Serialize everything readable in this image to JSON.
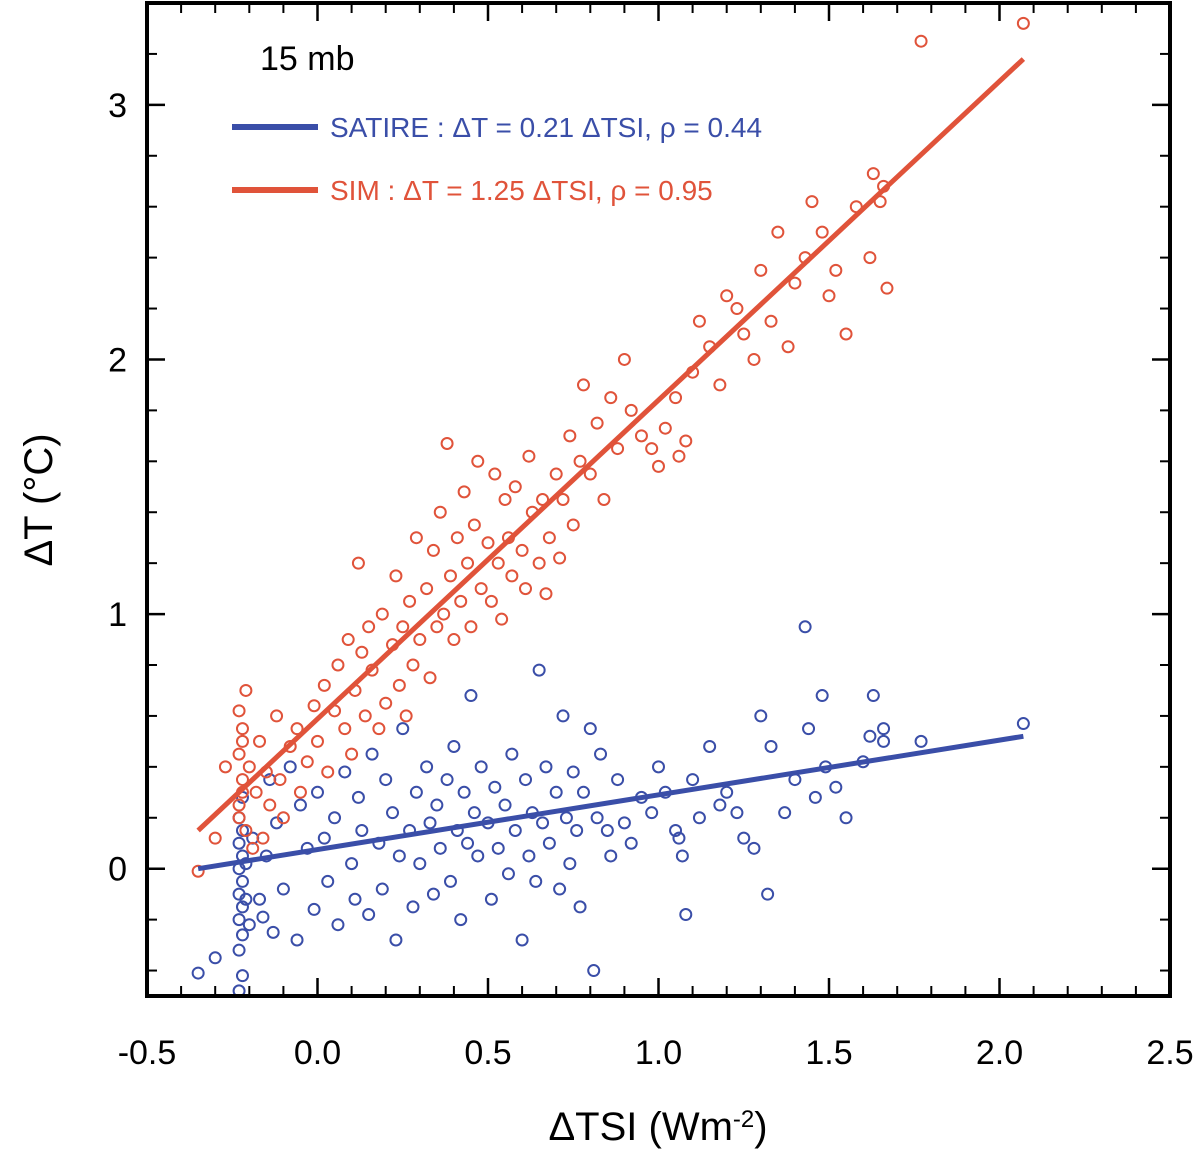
{
  "chart_data": {
    "type": "scatter",
    "panel_label": "15 mb",
    "xlabel": "ΔTSI (Wm",
    "xlabel_sup": "-2",
    "xlabel_end": ")",
    "ylabel": "ΔT (°C)",
    "xlim": [
      -0.5,
      2.5
    ],
    "ylim": [
      -0.5,
      3.4
    ],
    "xticks": [
      -0.5,
      0.0,
      0.5,
      1.0,
      1.5,
      2.0,
      2.5
    ],
    "xtick_labels": [
      "-0.5",
      "0.0",
      "0.5",
      "1.0",
      "1.5",
      "2.0",
      "2.5"
    ],
    "yticks": [
      0,
      1,
      2,
      3
    ],
    "ytick_labels": [
      "0",
      "1",
      "2",
      "3"
    ],
    "colors": {
      "satire": "#3a4ea8",
      "sim": "#e0533a",
      "axis": "#000000"
    },
    "series": [
      {
        "name": "SATIRE",
        "legend": "SATIRE : ΔT = 0.21 ΔTSI, ρ = 0.44",
        "color": "#3a4ea8",
        "fit": {
          "x": [
            -0.35,
            2.07
          ],
          "y": [
            0.0,
            0.52
          ]
        },
        "points": [
          [
            -0.35,
            -0.41
          ],
          [
            -0.3,
            -0.35
          ],
          [
            -0.23,
            -0.48
          ],
          [
            -0.22,
            -0.42
          ],
          [
            -0.23,
            -0.32
          ],
          [
            -0.22,
            -0.26
          ],
          [
            -0.23,
            -0.2
          ],
          [
            -0.22,
            -0.15
          ],
          [
            -0.23,
            -0.1
          ],
          [
            -0.22,
            -0.05
          ],
          [
            -0.23,
            0.0
          ],
          [
            -0.22,
            0.05
          ],
          [
            -0.23,
            0.1
          ],
          [
            -0.22,
            0.15
          ],
          [
            -0.23,
            0.2
          ],
          [
            -0.22,
            0.28
          ],
          [
            -0.21,
            -0.12
          ],
          [
            -0.21,
            0.02
          ],
          [
            -0.2,
            -0.22
          ],
          [
            -0.19,
            0.12
          ],
          [
            -0.17,
            -0.12
          ],
          [
            -0.16,
            -0.19
          ],
          [
            -0.15,
            0.05
          ],
          [
            -0.14,
            0.35
          ],
          [
            -0.13,
            -0.25
          ],
          [
            -0.12,
            0.18
          ],
          [
            -0.1,
            -0.08
          ],
          [
            -0.08,
            0.4
          ],
          [
            -0.06,
            -0.28
          ],
          [
            -0.05,
            0.25
          ],
          [
            -0.03,
            0.08
          ],
          [
            -0.01,
            -0.16
          ],
          [
            0.0,
            0.3
          ],
          [
            0.02,
            0.12
          ],
          [
            0.03,
            -0.05
          ],
          [
            0.05,
            0.2
          ],
          [
            0.06,
            -0.22
          ],
          [
            0.08,
            0.38
          ],
          [
            0.1,
            0.02
          ],
          [
            0.11,
            -0.12
          ],
          [
            0.12,
            0.28
          ],
          [
            0.13,
            0.15
          ],
          [
            0.15,
            -0.18
          ],
          [
            0.16,
            0.45
          ],
          [
            0.18,
            0.1
          ],
          [
            0.19,
            -0.08
          ],
          [
            0.2,
            0.35
          ],
          [
            0.22,
            0.22
          ],
          [
            0.23,
            -0.28
          ],
          [
            0.24,
            0.05
          ],
          [
            0.25,
            0.55
          ],
          [
            0.27,
            0.15
          ],
          [
            0.28,
            -0.15
          ],
          [
            0.29,
            0.3
          ],
          [
            0.3,
            0.02
          ],
          [
            0.32,
            0.4
          ],
          [
            0.33,
            0.18
          ],
          [
            0.34,
            -0.1
          ],
          [
            0.35,
            0.25
          ],
          [
            0.36,
            0.08
          ],
          [
            0.38,
            0.35
          ],
          [
            0.39,
            -0.05
          ],
          [
            0.4,
            0.48
          ],
          [
            0.41,
            0.15
          ],
          [
            0.42,
            -0.2
          ],
          [
            0.43,
            0.3
          ],
          [
            0.44,
            0.1
          ],
          [
            0.45,
            0.68
          ],
          [
            0.46,
            0.22
          ],
          [
            0.47,
            0.05
          ],
          [
            0.48,
            0.4
          ],
          [
            0.5,
            0.18
          ],
          [
            0.51,
            -0.12
          ],
          [
            0.52,
            0.32
          ],
          [
            0.53,
            0.08
          ],
          [
            0.55,
            0.25
          ],
          [
            0.56,
            -0.02
          ],
          [
            0.57,
            0.45
          ],
          [
            0.58,
            0.15
          ],
          [
            0.6,
            -0.28
          ],
          [
            0.61,
            0.35
          ],
          [
            0.62,
            0.05
          ],
          [
            0.63,
            0.22
          ],
          [
            0.64,
            -0.05
          ],
          [
            0.65,
            0.78
          ],
          [
            0.66,
            0.18
          ],
          [
            0.67,
            0.4
          ],
          [
            0.68,
            0.1
          ],
          [
            0.7,
            0.3
          ],
          [
            0.71,
            -0.08
          ],
          [
            0.72,
            0.6
          ],
          [
            0.73,
            0.2
          ],
          [
            0.74,
            0.02
          ],
          [
            0.75,
            0.38
          ],
          [
            0.76,
            0.15
          ],
          [
            0.77,
            -0.15
          ],
          [
            0.78,
            0.3
          ],
          [
            0.8,
            0.55
          ],
          [
            0.81,
            -0.4
          ],
          [
            0.82,
            0.2
          ],
          [
            0.83,
            0.45
          ],
          [
            0.85,
            0.15
          ],
          [
            0.86,
            0.05
          ],
          [
            0.88,
            0.35
          ],
          [
            0.9,
            0.18
          ],
          [
            0.92,
            0.1
          ],
          [
            0.95,
            0.28
          ],
          [
            0.98,
            0.22
          ],
          [
            1.0,
            0.4
          ],
          [
            1.02,
            0.3
          ],
          [
            1.05,
            0.15
          ],
          [
            1.06,
            0.12
          ],
          [
            1.07,
            0.05
          ],
          [
            1.08,
            -0.18
          ],
          [
            1.1,
            0.35
          ],
          [
            1.12,
            0.2
          ],
          [
            1.15,
            0.48
          ],
          [
            1.18,
            0.25
          ],
          [
            1.2,
            0.3
          ],
          [
            1.23,
            0.22
          ],
          [
            1.25,
            0.12
          ],
          [
            1.28,
            0.08
          ],
          [
            1.3,
            0.6
          ],
          [
            1.32,
            -0.1
          ],
          [
            1.33,
            0.48
          ],
          [
            1.37,
            0.22
          ],
          [
            1.4,
            0.35
          ],
          [
            1.43,
            0.95
          ],
          [
            1.44,
            0.55
          ],
          [
            1.46,
            0.28
          ],
          [
            1.48,
            0.68
          ],
          [
            1.49,
            0.4
          ],
          [
            1.52,
            0.32
          ],
          [
            1.55,
            0.2
          ],
          [
            1.6,
            0.42
          ],
          [
            1.62,
            0.52
          ],
          [
            1.63,
            0.68
          ],
          [
            1.66,
            0.55
          ],
          [
            1.66,
            0.5
          ],
          [
            1.77,
            0.5
          ],
          [
            2.07,
            0.57
          ]
        ]
      },
      {
        "name": "SIM",
        "legend": "SIM :  ΔT = 1.25 ΔTSI, ρ = 0.95",
        "color": "#e0533a",
        "fit": {
          "x": [
            -0.35,
            2.07
          ],
          "y": [
            0.15,
            3.18
          ]
        },
        "points": [
          [
            -0.35,
            -0.01
          ],
          [
            -0.3,
            0.12
          ],
          [
            -0.27,
            0.4
          ],
          [
            -0.23,
            0.2
          ],
          [
            -0.22,
            0.3
          ],
          [
            -0.23,
            0.45
          ],
          [
            -0.22,
            0.55
          ],
          [
            -0.23,
            0.62
          ],
          [
            -0.22,
            0.35
          ],
          [
            -0.23,
            0.25
          ],
          [
            -0.22,
            0.5
          ],
          [
            -0.21,
            0.7
          ],
          [
            -0.21,
            0.15
          ],
          [
            -0.2,
            0.4
          ],
          [
            -0.19,
            0.08
          ],
          [
            -0.18,
            0.3
          ],
          [
            -0.17,
            0.5
          ],
          [
            -0.16,
            0.12
          ],
          [
            -0.15,
            0.38
          ],
          [
            -0.14,
            0.25
          ],
          [
            -0.12,
            0.6
          ],
          [
            -0.11,
            0.35
          ],
          [
            -0.1,
            0.2
          ],
          [
            -0.08,
            0.48
          ],
          [
            -0.06,
            0.55
          ],
          [
            -0.05,
            0.3
          ],
          [
            -0.03,
            0.42
          ],
          [
            -0.01,
            0.64
          ],
          [
            0.0,
            0.5
          ],
          [
            0.02,
            0.72
          ],
          [
            0.03,
            0.38
          ],
          [
            0.05,
            0.62
          ],
          [
            0.06,
            0.8
          ],
          [
            0.08,
            0.55
          ],
          [
            0.09,
            0.9
          ],
          [
            0.1,
            0.45
          ],
          [
            0.11,
            0.7
          ],
          [
            0.12,
            1.2
          ],
          [
            0.13,
            0.85
          ],
          [
            0.14,
            0.6
          ],
          [
            0.15,
            0.95
          ],
          [
            0.16,
            0.78
          ],
          [
            0.18,
            0.55
          ],
          [
            0.19,
            1.0
          ],
          [
            0.2,
            0.65
          ],
          [
            0.22,
            0.88
          ],
          [
            0.23,
            1.15
          ],
          [
            0.24,
            0.72
          ],
          [
            0.25,
            0.95
          ],
          [
            0.26,
            0.6
          ],
          [
            0.27,
            1.05
          ],
          [
            0.28,
            0.8
          ],
          [
            0.29,
            1.3
          ],
          [
            0.3,
            0.9
          ],
          [
            0.32,
            1.1
          ],
          [
            0.33,
            0.75
          ],
          [
            0.34,
            1.25
          ],
          [
            0.35,
            0.95
          ],
          [
            0.36,
            1.4
          ],
          [
            0.37,
            1.0
          ],
          [
            0.38,
            1.67
          ],
          [
            0.39,
            1.15
          ],
          [
            0.4,
            0.9
          ],
          [
            0.41,
            1.3
          ],
          [
            0.42,
            1.05
          ],
          [
            0.43,
            1.48
          ],
          [
            0.44,
            1.2
          ],
          [
            0.45,
            0.95
          ],
          [
            0.46,
            1.35
          ],
          [
            0.47,
            1.6
          ],
          [
            0.48,
            1.1
          ],
          [
            0.5,
            1.28
          ],
          [
            0.51,
            1.05
          ],
          [
            0.52,
            1.55
          ],
          [
            0.53,
            1.2
          ],
          [
            0.54,
            0.98
          ],
          [
            0.55,
            1.45
          ],
          [
            0.56,
            1.3
          ],
          [
            0.57,
            1.15
          ],
          [
            0.58,
            1.5
          ],
          [
            0.6,
            1.25
          ],
          [
            0.61,
            1.1
          ],
          [
            0.62,
            1.62
          ],
          [
            0.63,
            1.4
          ],
          [
            0.65,
            1.2
          ],
          [
            0.66,
            1.45
          ],
          [
            0.67,
            1.08
          ],
          [
            0.68,
            1.3
          ],
          [
            0.7,
            1.55
          ],
          [
            0.71,
            1.22
          ],
          [
            0.72,
            1.45
          ],
          [
            0.74,
            1.7
          ],
          [
            0.75,
            1.35
          ],
          [
            0.77,
            1.6
          ],
          [
            0.78,
            1.9
          ],
          [
            0.8,
            1.55
          ],
          [
            0.82,
            1.75
          ],
          [
            0.84,
            1.45
          ],
          [
            0.86,
            1.85
          ],
          [
            0.88,
            1.65
          ],
          [
            0.9,
            2.0
          ],
          [
            0.92,
            1.8
          ],
          [
            0.95,
            1.7
          ],
          [
            0.98,
            1.65
          ],
          [
            1.0,
            1.58
          ],
          [
            1.02,
            1.73
          ],
          [
            1.05,
            1.85
          ],
          [
            1.06,
            1.62
          ],
          [
            1.08,
            1.68
          ],
          [
            1.1,
            1.95
          ],
          [
            1.12,
            2.15
          ],
          [
            1.15,
            2.05
          ],
          [
            1.18,
            1.9
          ],
          [
            1.2,
            2.25
          ],
          [
            1.23,
            2.2
          ],
          [
            1.25,
            2.1
          ],
          [
            1.28,
            2.0
          ],
          [
            1.3,
            2.35
          ],
          [
            1.33,
            2.15
          ],
          [
            1.35,
            2.5
          ],
          [
            1.38,
            2.05
          ],
          [
            1.4,
            2.3
          ],
          [
            1.43,
            2.4
          ],
          [
            1.45,
            2.62
          ],
          [
            1.48,
            2.5
          ],
          [
            1.5,
            2.25
          ],
          [
            1.52,
            2.35
          ],
          [
            1.55,
            2.1
          ],
          [
            1.58,
            2.6
          ],
          [
            1.62,
            2.4
          ],
          [
            1.63,
            2.73
          ],
          [
            1.65,
            2.62
          ],
          [
            1.66,
            2.68
          ],
          [
            1.67,
            2.28
          ],
          [
            1.77,
            3.25
          ],
          [
            2.07,
            3.32
          ]
        ]
      }
    ]
  }
}
